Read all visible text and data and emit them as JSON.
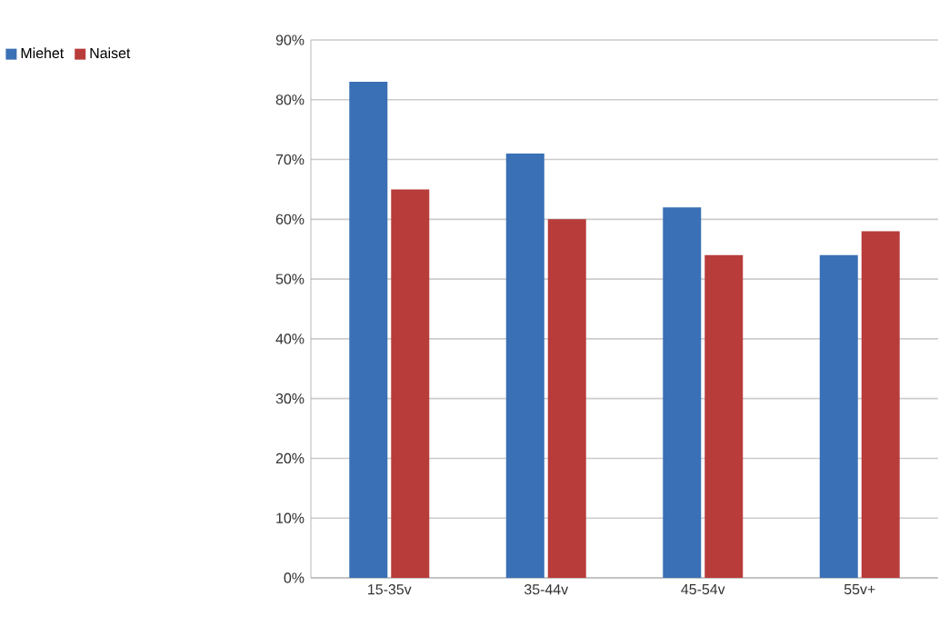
{
  "chart_data": {
    "type": "bar",
    "categories": [
      "15-35v",
      "35-44v",
      "45-54v",
      "55v+"
    ],
    "series": [
      {
        "name": "Miehet",
        "color": "#3a70b5",
        "values": [
          83,
          71,
          62,
          54
        ]
      },
      {
        "name": "Naiset",
        "color": "#b83c3a",
        "values": [
          65,
          60,
          54,
          58
        ]
      }
    ],
    "ylim": [
      0,
      90
    ],
    "yticks": [
      {
        "value": 0,
        "label": "0%"
      },
      {
        "value": 10,
        "label": "10%"
      },
      {
        "value": 20,
        "label": "20%"
      },
      {
        "value": 30,
        "label": "30%"
      },
      {
        "value": 40,
        "label": "40%"
      },
      {
        "value": 50,
        "label": "50%"
      },
      {
        "value": 60,
        "label": "60%"
      },
      {
        "value": 70,
        "label": "70%"
      },
      {
        "value": 80,
        "label": "80%"
      },
      {
        "value": 90,
        "label": "90%"
      }
    ],
    "grid": "y",
    "legend": "top left"
  }
}
